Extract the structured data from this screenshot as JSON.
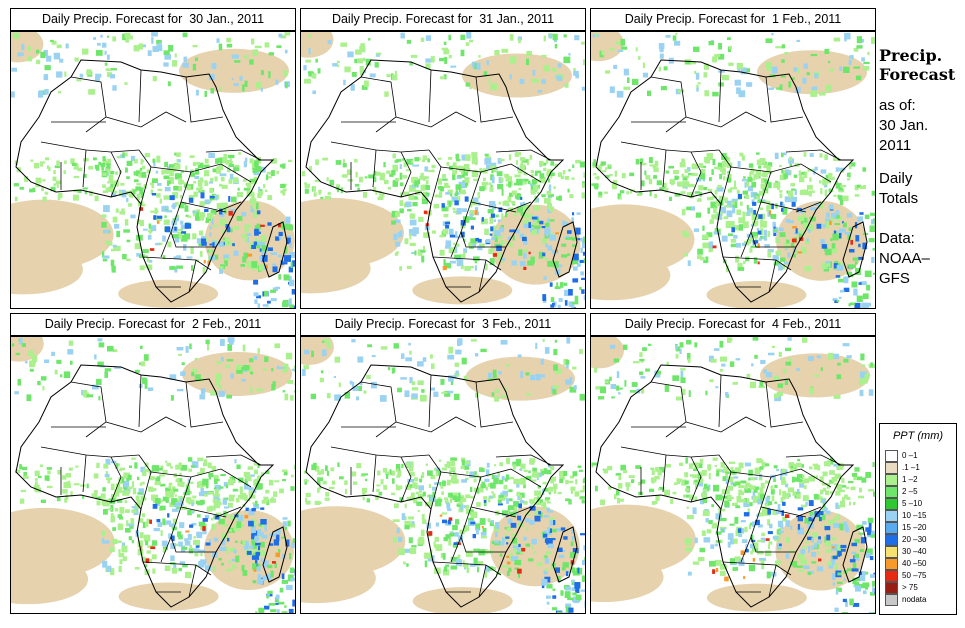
{
  "panels": [
    {
      "title": "Daily Precip. Forecast for  30 Jan., 2011"
    },
    {
      "title": "Daily Precip. Forecast for  31 Jan., 2011"
    },
    {
      "title": "Daily Precip. Forecast for  1 Feb., 2011"
    },
    {
      "title": "Daily Precip. Forecast for  2 Feb., 2011"
    },
    {
      "title": "Daily Precip. Forecast for  3 Feb., 2011"
    },
    {
      "title": "Daily Precip. Forecast for  4 Feb., 2011"
    }
  ],
  "sidebar": {
    "title_line1": "Precip.",
    "title_line2": "Forecast",
    "asof_label": "as of:",
    "date_line1": "30 Jan.",
    "date_line2": "2011",
    "totals_line1": "Daily",
    "totals_line2": "Totals",
    "source_line1": "Data:",
    "source_line2": "NOAA–",
    "source_line3": "GFS"
  },
  "legend": {
    "title": "PPT (mm)",
    "items": [
      {
        "label": "0 –1",
        "color": "#ffffff"
      },
      {
        "label": ".1 –1",
        "color": "#eadcc0"
      },
      {
        "label": "1 –2",
        "color": "#aaf08c"
      },
      {
        "label": "2 –5",
        "color": "#6ee66a"
      },
      {
        "label": "5 –10",
        "color": "#30c830"
      },
      {
        "label": "10 –15",
        "color": "#9ad2f2"
      },
      {
        "label": "15 –20",
        "color": "#5aaaf0"
      },
      {
        "label": "20 –30",
        "color": "#1e6ee6"
      },
      {
        "label": "30 –40",
        "color": "#f6e070"
      },
      {
        "label": "40 –50",
        "color": "#f69a2a"
      },
      {
        "label": "50 –75",
        "color": "#e62a14"
      },
      {
        "label": "> 75",
        "color": "#961e14"
      },
      {
        "label": "nodata",
        "color": "#c8c8c8"
      }
    ]
  },
  "colors": {
    "desert": "#e6d2ad",
    "light_green": "#aaf08c",
    "green": "#6ee66a",
    "light_blue": "#9ad2f2",
    "blue": "#1e6ee6",
    "orange": "#f69a2a",
    "red": "#e62a14",
    "border": "#000000"
  }
}
